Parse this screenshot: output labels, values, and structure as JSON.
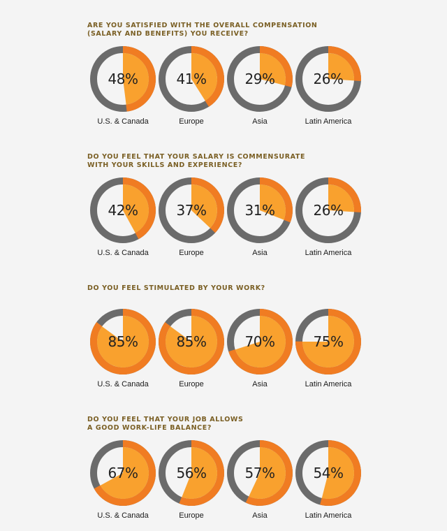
{
  "colors": {
    "ring_gray": "#6b6b6b",
    "ring_orange": "#f07c22",
    "fill_orange": "#f9a12e",
    "question_text": "#7a5f24"
  },
  "chart_data": [
    {
      "type": "pie",
      "title_lines": [
        "ARE YOU SATISFIED WITH THE OVERALL COMPENSATION",
        "(SALARY AND BENEFITS) YOU RECEIVE?"
      ],
      "categories": [
        "U.S. & Canada",
        "Europe",
        "Asia",
        "Latin America"
      ],
      "values": [
        48,
        41,
        29,
        26
      ],
      "labels": [
        "48%",
        "41%",
        "29%",
        "26%"
      ]
    },
    {
      "type": "pie",
      "title_lines": [
        "DO YOU FEEL THAT YOUR SALARY IS COMMENSURATE",
        "WITH YOUR SKILLS AND EXPERIENCE?"
      ],
      "categories": [
        "U.S. & Canada",
        "Europe",
        "Asia",
        "Latin America"
      ],
      "values": [
        42,
        37,
        31,
        26
      ],
      "labels": [
        "42%",
        "37%",
        "31%",
        "26%"
      ]
    },
    {
      "type": "pie",
      "title_lines": [
        "DO YOU FEEL STIMULATED BY YOUR WORK?"
      ],
      "categories": [
        "U.S. & Canada",
        "Europe",
        "Asia",
        "Latin America"
      ],
      "values": [
        85,
        85,
        70,
        75
      ],
      "labels": [
        "85%",
        "85%",
        "70%",
        "75%"
      ]
    },
    {
      "type": "pie",
      "title_lines": [
        "DO YOU FEEL THAT YOUR JOB ALLOWS",
        "A GOOD WORK-LIFE BALANCE?"
      ],
      "categories": [
        "U.S. & Canada",
        "Europe",
        "Asia",
        "Latin America"
      ],
      "values": [
        67,
        56,
        57,
        54
      ],
      "labels": [
        "67%",
        "56%",
        "57%",
        "54%"
      ]
    }
  ]
}
